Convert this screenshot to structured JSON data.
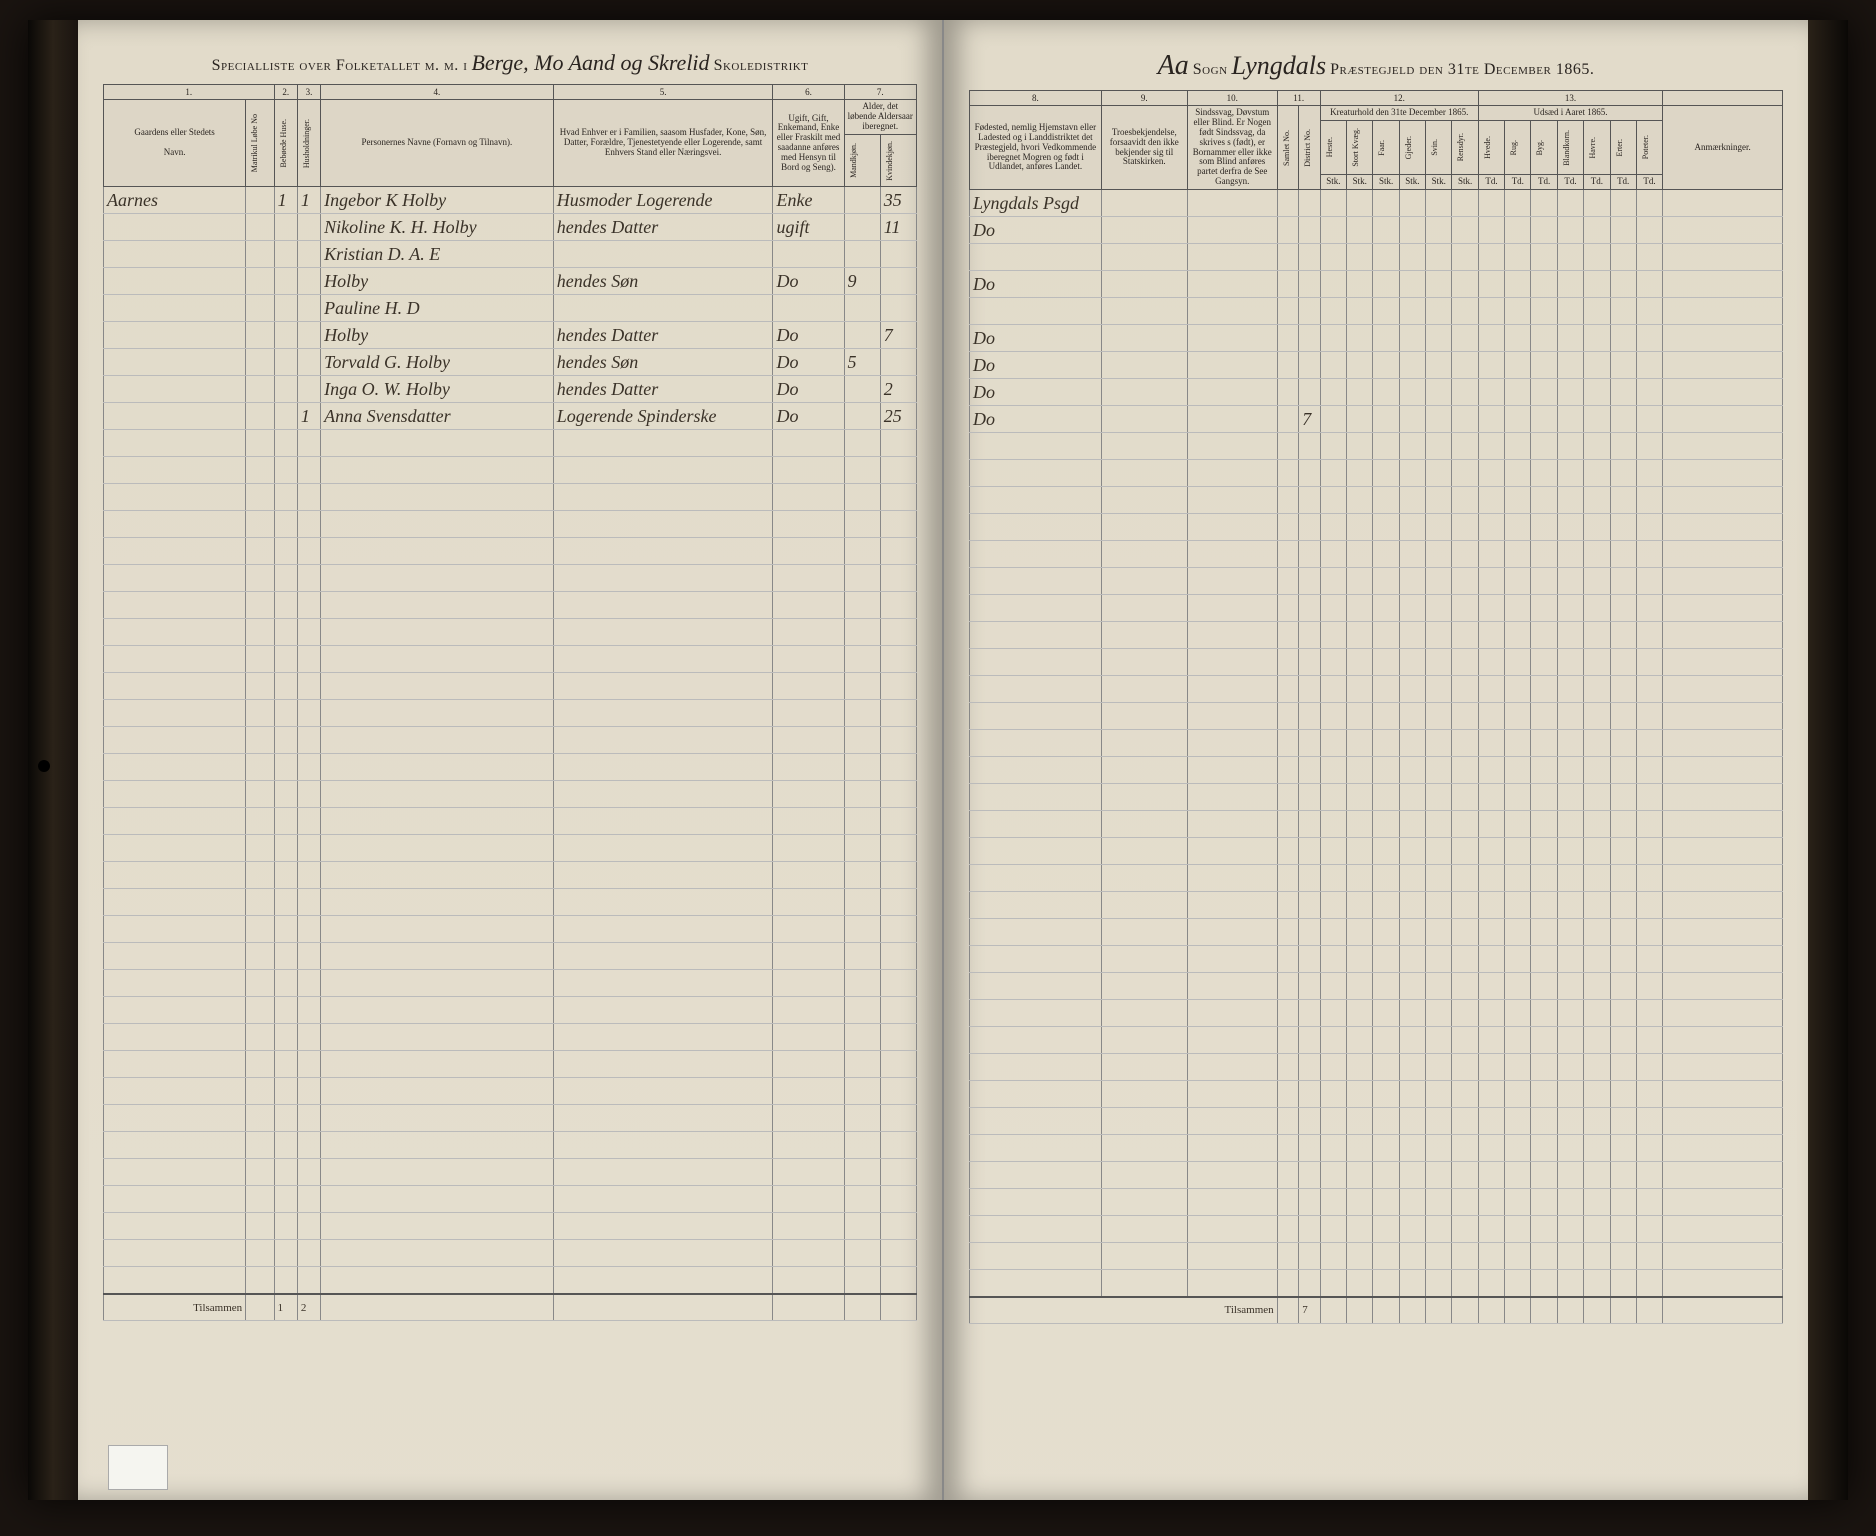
{
  "colors": {
    "page_bg": "#e8e2d4",
    "ink": "#3a3228",
    "border": "#555",
    "faint_border": "#bbb"
  },
  "header_left": {
    "printed_pre": "Specialliste over Folketallet m. m. i",
    "script_mid": "Berge, Mo Aand og Skrelid",
    "printed_post": "Skoledistrikt"
  },
  "header_right": {
    "script_pre": "Aa",
    "printed_sogn": "Sogn",
    "script_mid": "Lyngdals",
    "printed_post": "Præstegjeld den 31te December 1865."
  },
  "col_nums_left": [
    "1.",
    "2.",
    "3.",
    "4.",
    "5.",
    "6.",
    "7."
  ],
  "col_nums_right": [
    "8.",
    "9.",
    "10.",
    "11.",
    "12.",
    "13."
  ],
  "col_heads_left": {
    "c1": "Gaardens eller Stedets",
    "c1b": "Navn.",
    "c2": "Matrikul Løbe No",
    "c3": "Bebøede Huse. Hustholdninger.",
    "c4": "Personernes Navne (Fornavn og Tilnavn).",
    "c5": "Hvad Enhver er i Familien, saasom Husfader, Kone, Søn, Datter, Forældre, Tjenestetyende eller Logerende, samt Enhvers Stand eller Næringsvei.",
    "c6": "Ugift, Gift, Enkemand, Enke eller Fraskilt med saadanne anføres med Hensyn til Bord og Seng).",
    "c7": "Alder, det løbende Aldersaar iberegnet.",
    "c7a": "Mandkjøn.",
    "c7b": "Kvindekjøn."
  },
  "col_heads_right": {
    "c8": "Fødested, nemlig Hjemstavn eller Ladested og i Landdistriktet det Præstegjeld, hvori Vedkommende iberegnet Mogren og født i Udlandet, anføres Landet.",
    "c9": "Troesbekjendelse, forsaavidt den ikke bekjender sig til Statskirken.",
    "c10": "Sindssvag, Døvstum eller Blind. Er Nogen født Sindssvag, da skrives s (født), er Bornammer eller ikke som Blind anføres partet derfra de See Gangsyn.",
    "c11": "Hører",
    "c12": "Kreaturhold den 31te December 1865.",
    "c12_sub": [
      "Heste.",
      "Stort Kvæg.",
      "Faar.",
      "Gjeder.",
      "Svin.",
      "Rensdyr."
    ],
    "c12_unit": "Stk.",
    "c13": "Udsæd i Aaret 1865.",
    "c13_sub": [
      "Hvede.",
      "Rug.",
      "Byg.",
      "Blandkorn.",
      "Havre.",
      "Erter.",
      "Poteter."
    ],
    "c13_unit": "Td.",
    "c14": "Anmærkninger."
  },
  "rows": [
    {
      "gaard": "Aarnes",
      "mat": "",
      "hus": "1",
      "hh": "1",
      "name": "Ingebor K Holby",
      "fam": "Husmoder Logerende",
      "stand": "Enke",
      "mk": "",
      "kv": "35",
      "fode": "Lyngdals Psgd",
      "c11": ""
    },
    {
      "gaard": "",
      "mat": "",
      "hus": "",
      "hh": "",
      "name": "Nikoline K. H. Holby",
      "fam": "hendes Datter",
      "stand": "ugift",
      "mk": "",
      "kv": "11",
      "fode": "Do",
      "c11": ""
    },
    {
      "gaard": "",
      "mat": "",
      "hus": "",
      "hh": "",
      "name": "Kristian D. A. E",
      "fam": "",
      "stand": "",
      "mk": "",
      "kv": "",
      "fode": "",
      "c11": ""
    },
    {
      "gaard": "",
      "mat": "",
      "hus": "",
      "hh": "",
      "name": "Holby",
      "fam": "hendes Søn",
      "stand": "Do",
      "mk": "9",
      "kv": "",
      "fode": "Do",
      "c11": ""
    },
    {
      "gaard": "",
      "mat": "",
      "hus": "",
      "hh": "",
      "name": "Pauline H. D",
      "fam": "",
      "stand": "",
      "mk": "",
      "kv": "",
      "fode": "",
      "c11": ""
    },
    {
      "gaard": "",
      "mat": "",
      "hus": "",
      "hh": "",
      "name": "Holby",
      "fam": "hendes Datter",
      "stand": "Do",
      "mk": "",
      "kv": "7",
      "fode": "Do",
      "c11": ""
    },
    {
      "gaard": "",
      "mat": "",
      "hus": "",
      "hh": "",
      "name": "Torvald G. Holby",
      "fam": "hendes Søn",
      "stand": "Do",
      "mk": "5",
      "kv": "",
      "fode": "Do",
      "c11": ""
    },
    {
      "gaard": "",
      "mat": "",
      "hus": "",
      "hh": "",
      "name": "Inga O. W. Holby",
      "fam": "hendes Datter",
      "stand": "Do",
      "mk": "",
      "kv": "2",
      "fode": "Do",
      "c11": ""
    },
    {
      "gaard": "",
      "mat": "",
      "hus": "",
      "hh": "1",
      "name": "Anna Svensdatter",
      "fam": "Logerende Spinderske",
      "stand": "Do",
      "mk": "",
      "kv": "25",
      "fode": "Do",
      "c11": "7"
    }
  ],
  "empty_rows": 32,
  "footer": {
    "label": "Tilsammen",
    "hus": "1",
    "hh": "2",
    "c11": "7"
  }
}
